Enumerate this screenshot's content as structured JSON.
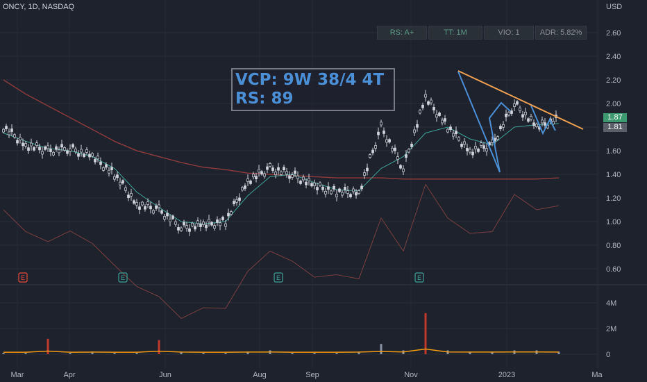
{
  "header": {
    "symbol": "ONCY, 1D, NASDAQ",
    "currency": "USD"
  },
  "indicators": [
    {
      "label": "RS: A+"
    },
    {
      "label": "TT: 1M"
    },
    {
      "label": "VIO: 1"
    },
    {
      "label": "ADR: 5.82%"
    }
  ],
  "annotation": {
    "line1": "VCP: 9W 38/4 4T",
    "line2": "RS: 89"
  },
  "price_tags": {
    "last": "1.87",
    "prev": "1.81"
  },
  "price_axis": [
    "2.60",
    "2.40",
    "2.20",
    "2.00",
    "1.80",
    "1.60",
    "1.40",
    "1.20",
    "1.00",
    "0.80",
    "0.60"
  ],
  "volume_axis": [
    "4M",
    "2M",
    "0"
  ],
  "time_axis": [
    "Mar",
    "Apr",
    "Jun",
    "Aug",
    "Sep",
    "Nov",
    "2023",
    "Ma"
  ],
  "earnings_marker": "E",
  "colors": {
    "background": "#1e222d",
    "candle": "#d1d4dc",
    "ma_short": "#3fa39a",
    "ma_mid": "#2e7d74",
    "ma_long": "#8a3a3a",
    "rs_line": "#7a4040",
    "trendline": "#f0a050",
    "pattern": "#4b8fd6",
    "volume": "#d1d4dc",
    "volume_ma": "#f39c12",
    "last_tag": "#3d9970",
    "prev_tag": "#787b86"
  },
  "chart_data": {
    "type": "candlestick",
    "title": "ONCY, 1D, NASDAQ",
    "ylim": [
      0.55,
      2.75
    ],
    "x": [
      "Feb-25",
      "Mar-10",
      "Mar-25",
      "Apr-10",
      "Apr-25",
      "May-10",
      "May-25",
      "Jun-10",
      "Jun-25",
      "Jul-10",
      "Jul-25",
      "Aug-10",
      "Aug-25",
      "Sep-10",
      "Sep-25",
      "Oct-10",
      "Oct-25",
      "Nov-08",
      "Nov-20",
      "Dec-01",
      "Dec-10",
      "Dec-20",
      "Jan-05",
      "Jan-15",
      "Jan-25",
      "Feb-05"
    ],
    "close": [
      1.8,
      1.65,
      1.6,
      1.62,
      1.55,
      1.4,
      1.15,
      1.1,
      0.95,
      0.97,
      1.0,
      1.35,
      1.45,
      1.4,
      1.3,
      1.25,
      1.25,
      1.8,
      1.45,
      2.05,
      1.8,
      1.6,
      1.65,
      2.0,
      1.8,
      1.87
    ],
    "ma_short": [
      1.75,
      1.68,
      1.62,
      1.6,
      1.55,
      1.45,
      1.25,
      1.12,
      1.0,
      0.98,
      1.0,
      1.22,
      1.38,
      1.4,
      1.33,
      1.27,
      1.26,
      1.45,
      1.55,
      1.75,
      1.8,
      1.7,
      1.65,
      1.8,
      1.82,
      1.83
    ],
    "ma_long": [
      2.2,
      2.08,
      1.98,
      1.88,
      1.78,
      1.68,
      1.6,
      1.55,
      1.5,
      1.46,
      1.44,
      1.41,
      1.4,
      1.39,
      1.38,
      1.37,
      1.37,
      1.37,
      1.36,
      1.36,
      1.36,
      1.36,
      1.36,
      1.36,
      1.36,
      1.37
    ],
    "volume_m": [
      0.1,
      0.1,
      1.2,
      0.1,
      0.2,
      0.1,
      0.1,
      1.1,
      0.2,
      0.1,
      0.1,
      0.2,
      0.3,
      0.1,
      0.1,
      0.1,
      0.2,
      0.8,
      0.3,
      3.2,
      0.3,
      0.2,
      0.2,
      0.3,
      0.3,
      0.2
    ],
    "volume_ylim": [
      0,
      4.5
    ]
  }
}
